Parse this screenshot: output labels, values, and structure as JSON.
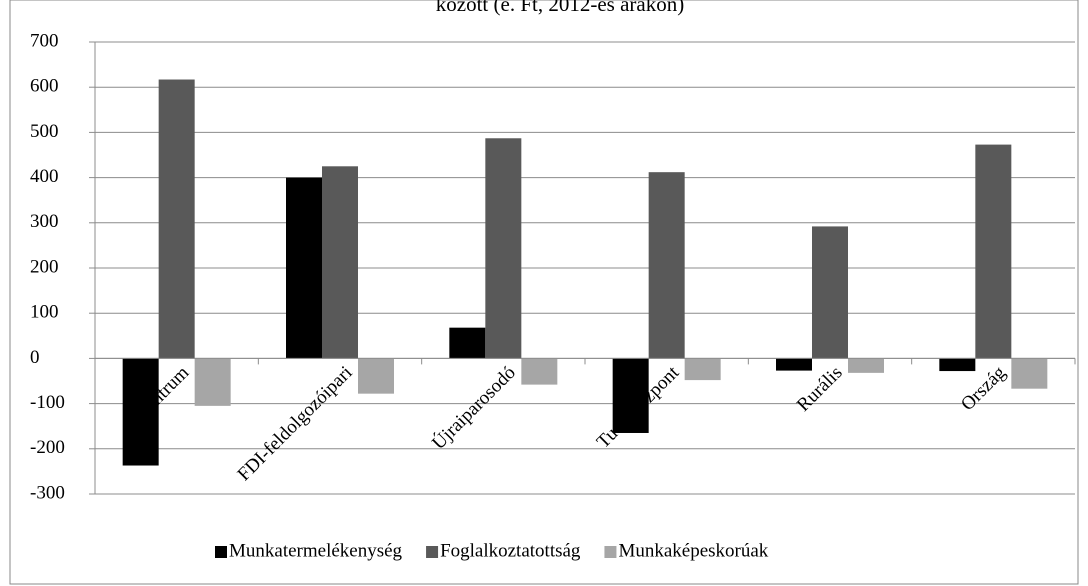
{
  "chart_data": {
    "type": "bar",
    "title": "között (e. Ft, 2012-es árakon)",
    "categories": [
      "Centrum",
      "FDI-feldolgozóipari",
      "Újraiparosodó",
      "Tudásközpont",
      "Rurális",
      "Ország"
    ],
    "series": [
      {
        "name": "Munkatermelékenység",
        "color": "#000000",
        "values": [
          -237,
          400,
          68,
          -165,
          -27,
          -28
        ]
      },
      {
        "name": "Foglalkoztatottság",
        "color": "#595959",
        "values": [
          617,
          425,
          487,
          412,
          292,
          473
        ]
      },
      {
        "name": "Munkaképeskorúak",
        "color": "#a6a6a6",
        "values": [
          -105,
          -78,
          -58,
          -48,
          -32,
          -67
        ]
      }
    ],
    "ylim": [
      -300,
      700
    ],
    "yticks": [
      -300,
      -200,
      -100,
      0,
      100,
      200,
      300,
      400,
      500,
      600,
      700
    ],
    "grid": true,
    "legend": "bottom"
  }
}
